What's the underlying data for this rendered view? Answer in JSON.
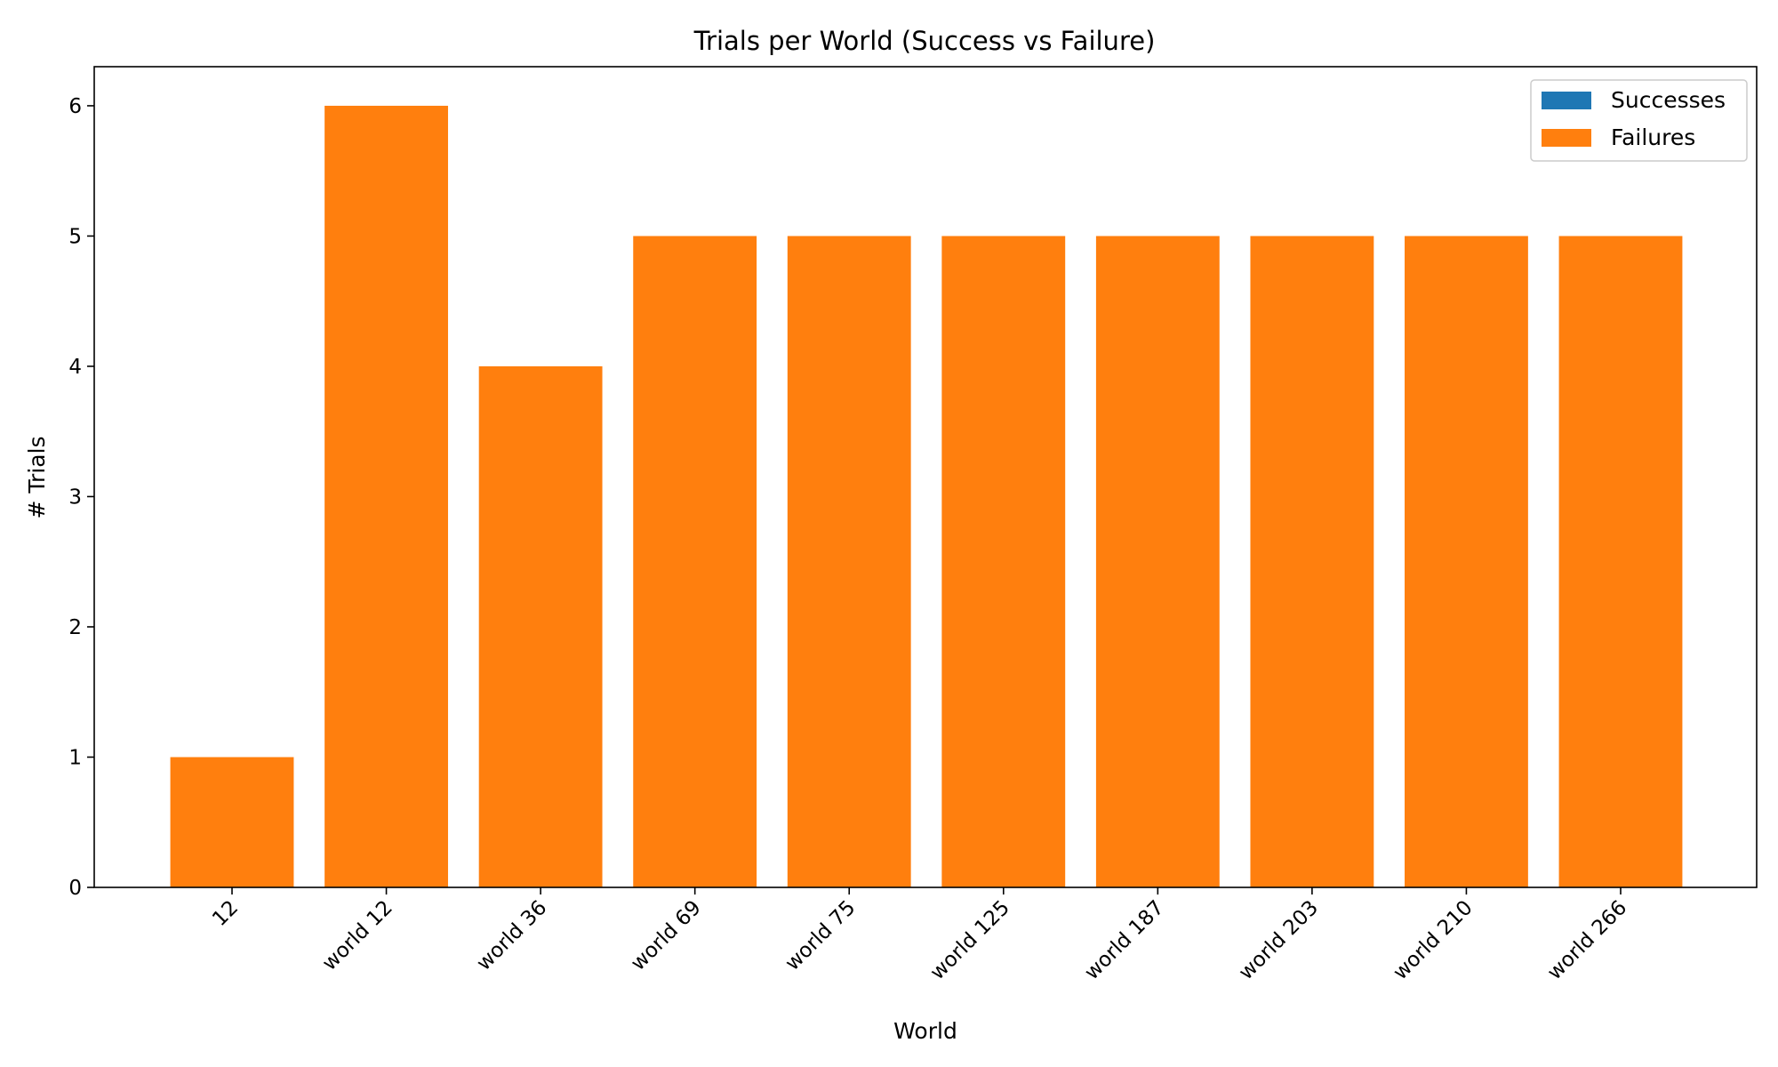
{
  "chart_data": {
    "type": "bar",
    "stacked": true,
    "title": "Trials per World (Success vs Failure)",
    "xlabel": "World",
    "ylabel": "# Trials",
    "categories": [
      "12",
      "world 12",
      "world 36",
      "world 69",
      "world 75",
      "world 125",
      "world 187",
      "world 203",
      "world 210",
      "world 266"
    ],
    "series": [
      {
        "name": "Successes",
        "color": "#1f77b4",
        "values": [
          0,
          0,
          0,
          0,
          0,
          0,
          0,
          0,
          0,
          0
        ]
      },
      {
        "name": "Failures",
        "color": "#ff7f0e",
        "values": [
          1,
          6,
          4,
          5,
          5,
          5,
          5,
          5,
          5,
          5
        ]
      }
    ],
    "ylim": [
      0,
      6.3
    ],
    "yticks": [
      0,
      1,
      2,
      3,
      4,
      5,
      6
    ],
    "legend_position": "top-right",
    "grid": false
  }
}
